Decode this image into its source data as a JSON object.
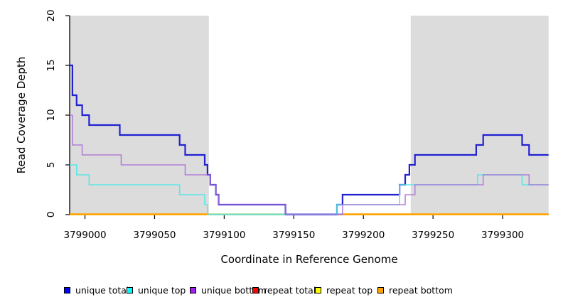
{
  "chart_data": {
    "type": "line",
    "subtype": "step",
    "title": "",
    "xlabel": "Coordinate in Reference Genome",
    "ylabel": "Read Coverage Depth",
    "xlim": [
      3798989,
      3799333
    ],
    "ylim": [
      0,
      20
    ],
    "x_ticks": [
      3799000,
      3799050,
      3799100,
      3799150,
      3799200,
      3799250,
      3799300
    ],
    "y_ticks": [
      0,
      5,
      10,
      15,
      20
    ],
    "grid": false,
    "legend_position": "bottom",
    "shaded_regions": [
      {
        "from": 3798989,
        "to": 3799089,
        "color": "#DCDCDC"
      },
      {
        "from": 3799234,
        "to": 3799333,
        "color": "#DCDCDC"
      }
    ],
    "series": [
      {
        "name": "unique total",
        "color": "#2121D2",
        "legend_color": "#0000FF",
        "width": 2.2,
        "opacity": 1,
        "steps": [
          [
            3798989,
            15
          ],
          [
            3798991,
            12
          ],
          [
            3798994,
            11
          ],
          [
            3798998,
            10
          ],
          [
            3799003,
            9
          ],
          [
            3799025,
            8
          ],
          [
            3799068,
            7
          ],
          [
            3799072,
            6
          ],
          [
            3799086,
            5
          ],
          [
            3799088,
            4
          ],
          [
            3799090,
            3
          ],
          [
            3799094,
            2
          ],
          [
            3799096,
            1
          ],
          [
            3799144,
            0
          ],
          [
            3799181,
            1
          ],
          [
            3799185,
            2
          ],
          [
            3799226,
            3
          ],
          [
            3799230,
            4
          ],
          [
            3799233,
            5
          ],
          [
            3799237,
            6
          ],
          [
            3799281,
            7
          ],
          [
            3799286,
            8
          ],
          [
            3799314,
            7
          ],
          [
            3799319,
            6
          ]
        ]
      },
      {
        "name": "unique top",
        "color": "#5CE6E6",
        "legend_color": "#00FFFF",
        "width": 1.6,
        "opacity": 1,
        "steps": [
          [
            3798989,
            5
          ],
          [
            3798994,
            4
          ],
          [
            3799003,
            3
          ],
          [
            3799068,
            2
          ],
          [
            3799086,
            1
          ],
          [
            3799088,
            0
          ],
          [
            3799181,
            1
          ],
          [
            3799226,
            3
          ],
          [
            3799282,
            4
          ],
          [
            3799314,
            3
          ]
        ]
      },
      {
        "name": "unique bottom",
        "color": "#A96FD6",
        "legend_color": "#A020F0",
        "width": 1.6,
        "opacity": 0.85,
        "steps": [
          [
            3798989,
            10
          ],
          [
            3798991,
            7
          ],
          [
            3798998,
            6
          ],
          [
            3799026,
            5
          ],
          [
            3799072,
            4
          ],
          [
            3799090,
            3
          ],
          [
            3799094,
            2
          ],
          [
            3799096,
            1
          ],
          [
            3799144,
            0
          ],
          [
            3799185,
            1
          ],
          [
            3799230,
            2
          ],
          [
            3799237,
            3
          ],
          [
            3799286,
            4
          ],
          [
            3799319,
            3
          ]
        ]
      },
      {
        "name": "repeat total",
        "color": "#E02020",
        "legend_color": "#FF0000",
        "width": 1.4,
        "opacity": 1,
        "steps": [
          [
            3798989,
            0
          ]
        ]
      },
      {
        "name": "repeat top",
        "color": "#FFFF00",
        "legend_color": "#FFFF00",
        "width": 1.4,
        "opacity": 1,
        "steps": [
          [
            3798989,
            0
          ]
        ]
      },
      {
        "name": "repeat bottom",
        "color": "#FFA500",
        "legend_color": "#FFA500",
        "width": 1.8,
        "opacity": 1,
        "steps": [
          [
            3798989,
            0
          ]
        ]
      }
    ],
    "zero_line_overlays": [
      {
        "from": 3798989,
        "to": 3799089,
        "color": "#FFA500",
        "width": 1.8
      },
      {
        "from": 3799089,
        "to": 3799144,
        "color": "#8FD98F",
        "width": 1.6
      },
      {
        "from": 3799144,
        "to": 3799185,
        "color": "#8D8DE8",
        "width": 1.6
      },
      {
        "from": 3799185,
        "to": 3799333,
        "color": "#FFA500",
        "width": 1.8
      }
    ],
    "legend": [
      {
        "label": "unique total",
        "color": "#0000FF"
      },
      {
        "label": "unique top",
        "color": "#00FFFF"
      },
      {
        "label": "unique bottom",
        "color": "#A020F0"
      },
      {
        "label": "repeat total",
        "color": "#FF0000"
      },
      {
        "label": "repeat top",
        "color": "#FFFF00"
      },
      {
        "label": "repeat bottom",
        "color": "#FFA500"
      }
    ]
  },
  "labels": {
    "xlabel": "Coordinate in Reference Genome",
    "ylabel": "Read Coverage Depth"
  }
}
